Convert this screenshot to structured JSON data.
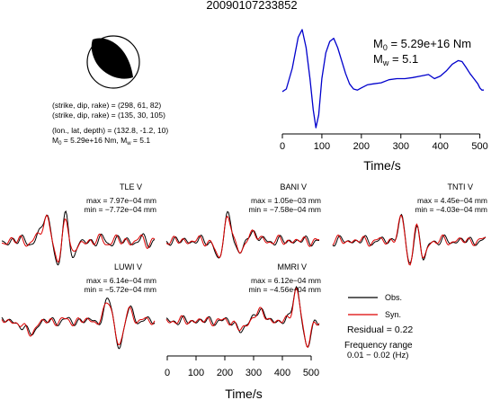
{
  "title": "20090107233852",
  "mechanism": {
    "lines": [
      "(strike, dip, rake) = (298, 61, 82)",
      "(strike, dip, rake) = (135, 30, 105)",
      "(lon., lat, depth) = (132.8, -1.2, 10)"
    ],
    "m0_text": "M",
    "m0_sub": "0",
    "m0_rest": " = 5.29e+16 Nm, M",
    "mw_sub": "w",
    "mw_rest": " = 5.1"
  },
  "stf_labels": {
    "m0_main": "M",
    "m0_sub": "0",
    "m0_value": " = 5.29e+16 Nm",
    "mw_main": "M",
    "mw_sub": "w",
    "mw_value": " = 5.1"
  },
  "legend": {
    "obs": "Obs.",
    "syn": "Syn.",
    "residual": "Residual = 0.22",
    "freq_title": "Frequency range",
    "freq_value": "0.01 − 0.02 (Hz)"
  },
  "colors": {
    "obs": "#000000",
    "syn": "#dd0000",
    "stf": "#0000cc"
  },
  "chart_data": [
    {
      "type": "line",
      "name": "source-time-function",
      "xlabel": "Time/s",
      "ylabel": "",
      "xlim": [
        0,
        510
      ],
      "xticks": [
        0,
        100,
        200,
        300,
        400,
        500
      ],
      "ylim": [
        -1.0,
        1.0
      ],
      "series": [
        {
          "x": [
            0,
            10,
            25,
            40,
            50,
            60,
            70,
            78,
            85,
            92,
            100,
            110,
            120,
            130,
            140,
            150,
            160,
            170,
            180,
            190,
            200,
            215,
            230,
            250,
            270,
            290,
            310,
            330,
            350,
            370,
            385,
            400,
            415,
            430,
            445,
            455,
            465,
            475,
            485,
            495,
            500,
            505,
            510
          ],
          "values": [
            -0.25,
            -0.2,
            0.2,
            0.8,
            0.95,
            0.6,
            0.0,
            -0.6,
            -0.95,
            -0.7,
            0.0,
            0.5,
            0.72,
            0.78,
            0.6,
            0.35,
            0.1,
            -0.1,
            -0.2,
            -0.22,
            -0.18,
            -0.12,
            -0.1,
            -0.08,
            -0.02,
            0.0,
            0.0,
            0.02,
            0.05,
            0.08,
            0.0,
            0.05,
            0.15,
            0.28,
            0.35,
            0.33,
            0.22,
            0.1,
            0.0,
            -0.1,
            -0.18,
            -0.22,
            -0.22
          ]
        }
      ]
    },
    {
      "type": "line",
      "name": "waveforms",
      "xlabel": "Time/s",
      "xlim": [
        0,
        520
      ],
      "xticks": [
        0,
        100,
        200,
        300,
        400,
        500
      ],
      "panels": [
        {
          "station": "TLE V",
          "max": "max = 7.97e−04 mm",
          "min": "min = −7.72e−04 mm"
        },
        {
          "station": "BANI V",
          "max": "max = 1.05e−03 mm",
          "min": "min = −7.58e−04 mm"
        },
        {
          "station": "TNTI V",
          "max": "max = 4.45e−04 mm",
          "min": "min = −4.03e−04 mm"
        },
        {
          "station": "LUWI V",
          "max": "max = 6.14e−04 mm",
          "min": "min = −5.72e−04 mm"
        },
        {
          "station": "MMRI V",
          "max": "max = 6.12e−04 mm",
          "min": "min = −4.56e−04 mm"
        }
      ]
    }
  ]
}
